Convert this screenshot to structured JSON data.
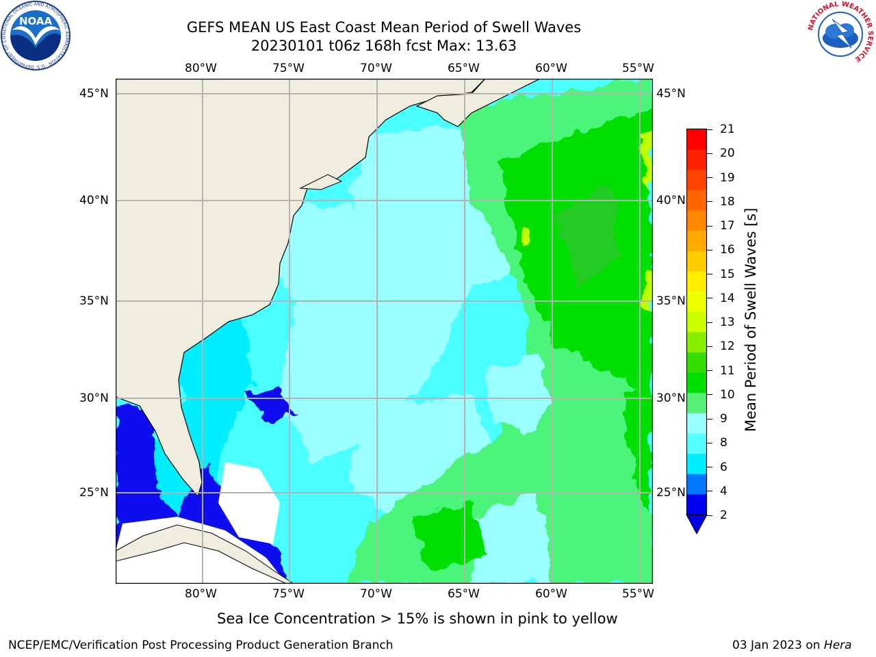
{
  "title": {
    "line1": "GEFS MEAN US East Coast Mean Period of Swell Waves",
    "line2": "20230101 t06z 168h fcst   Max: 13.63"
  },
  "map": {
    "lon_labels": [
      "80°W",
      "75°W",
      "70°W",
      "65°W",
      "60°W",
      "55°W"
    ],
    "lat_labels": [
      "45°N",
      "40°N",
      "35°N",
      "30°N",
      "25°N"
    ],
    "colors": {
      "land": "#efedde",
      "ocean_light": "#99ffff",
      "ocean_cyan": "#49ffff",
      "ocean_bright": "#00eeff",
      "ocean_deep": "#0a0af0",
      "green_light": "#4cf57a",
      "green": "#00e000",
      "green_dark": "#22cc22",
      "yellow_green": "#bfff00",
      "gridline": "#b3b3b3",
      "coast": "#000000"
    }
  },
  "colorbar": {
    "label": "Mean Period of Swell Waves [s]",
    "ticks": [
      "21",
      "20",
      "19",
      "18",
      "17",
      "16",
      "15",
      "14",
      "13",
      "12",
      "11",
      "10",
      "9",
      "8",
      "6",
      "4",
      "2"
    ],
    "colors": [
      "#ff0000",
      "#ff2200",
      "#ff4400",
      "#ff6600",
      "#ff8800",
      "#ffaa00",
      "#ffcc00",
      "#ffee00",
      "#eeff00",
      "#ccff00",
      "#88ee00",
      "#33dd00",
      "#00e000",
      "#55ee77",
      "#99ffff",
      "#55ffff",
      "#00eeff",
      "#0077ff",
      "#0000ee"
    ],
    "underflow_color": "#0000ee"
  },
  "footer": {
    "sea_ice_note": "Sea Ice Concentration > 15% is shown in pink to yellow",
    "branch": "NCEP/EMC/Verification Post Processing Product Generation Branch",
    "date": "03 Jan 2023 on ",
    "host": "Hera"
  },
  "logos": {
    "noaa_text": "NOAA",
    "noaa_ring": "NATIONAL OCEANIC AND ATMOSPHERIC ADMINISTRATION · U.S. DEPARTMENT OF COMMERCE",
    "nws_ring": "NATIONAL WEATHER SERVICE"
  }
}
